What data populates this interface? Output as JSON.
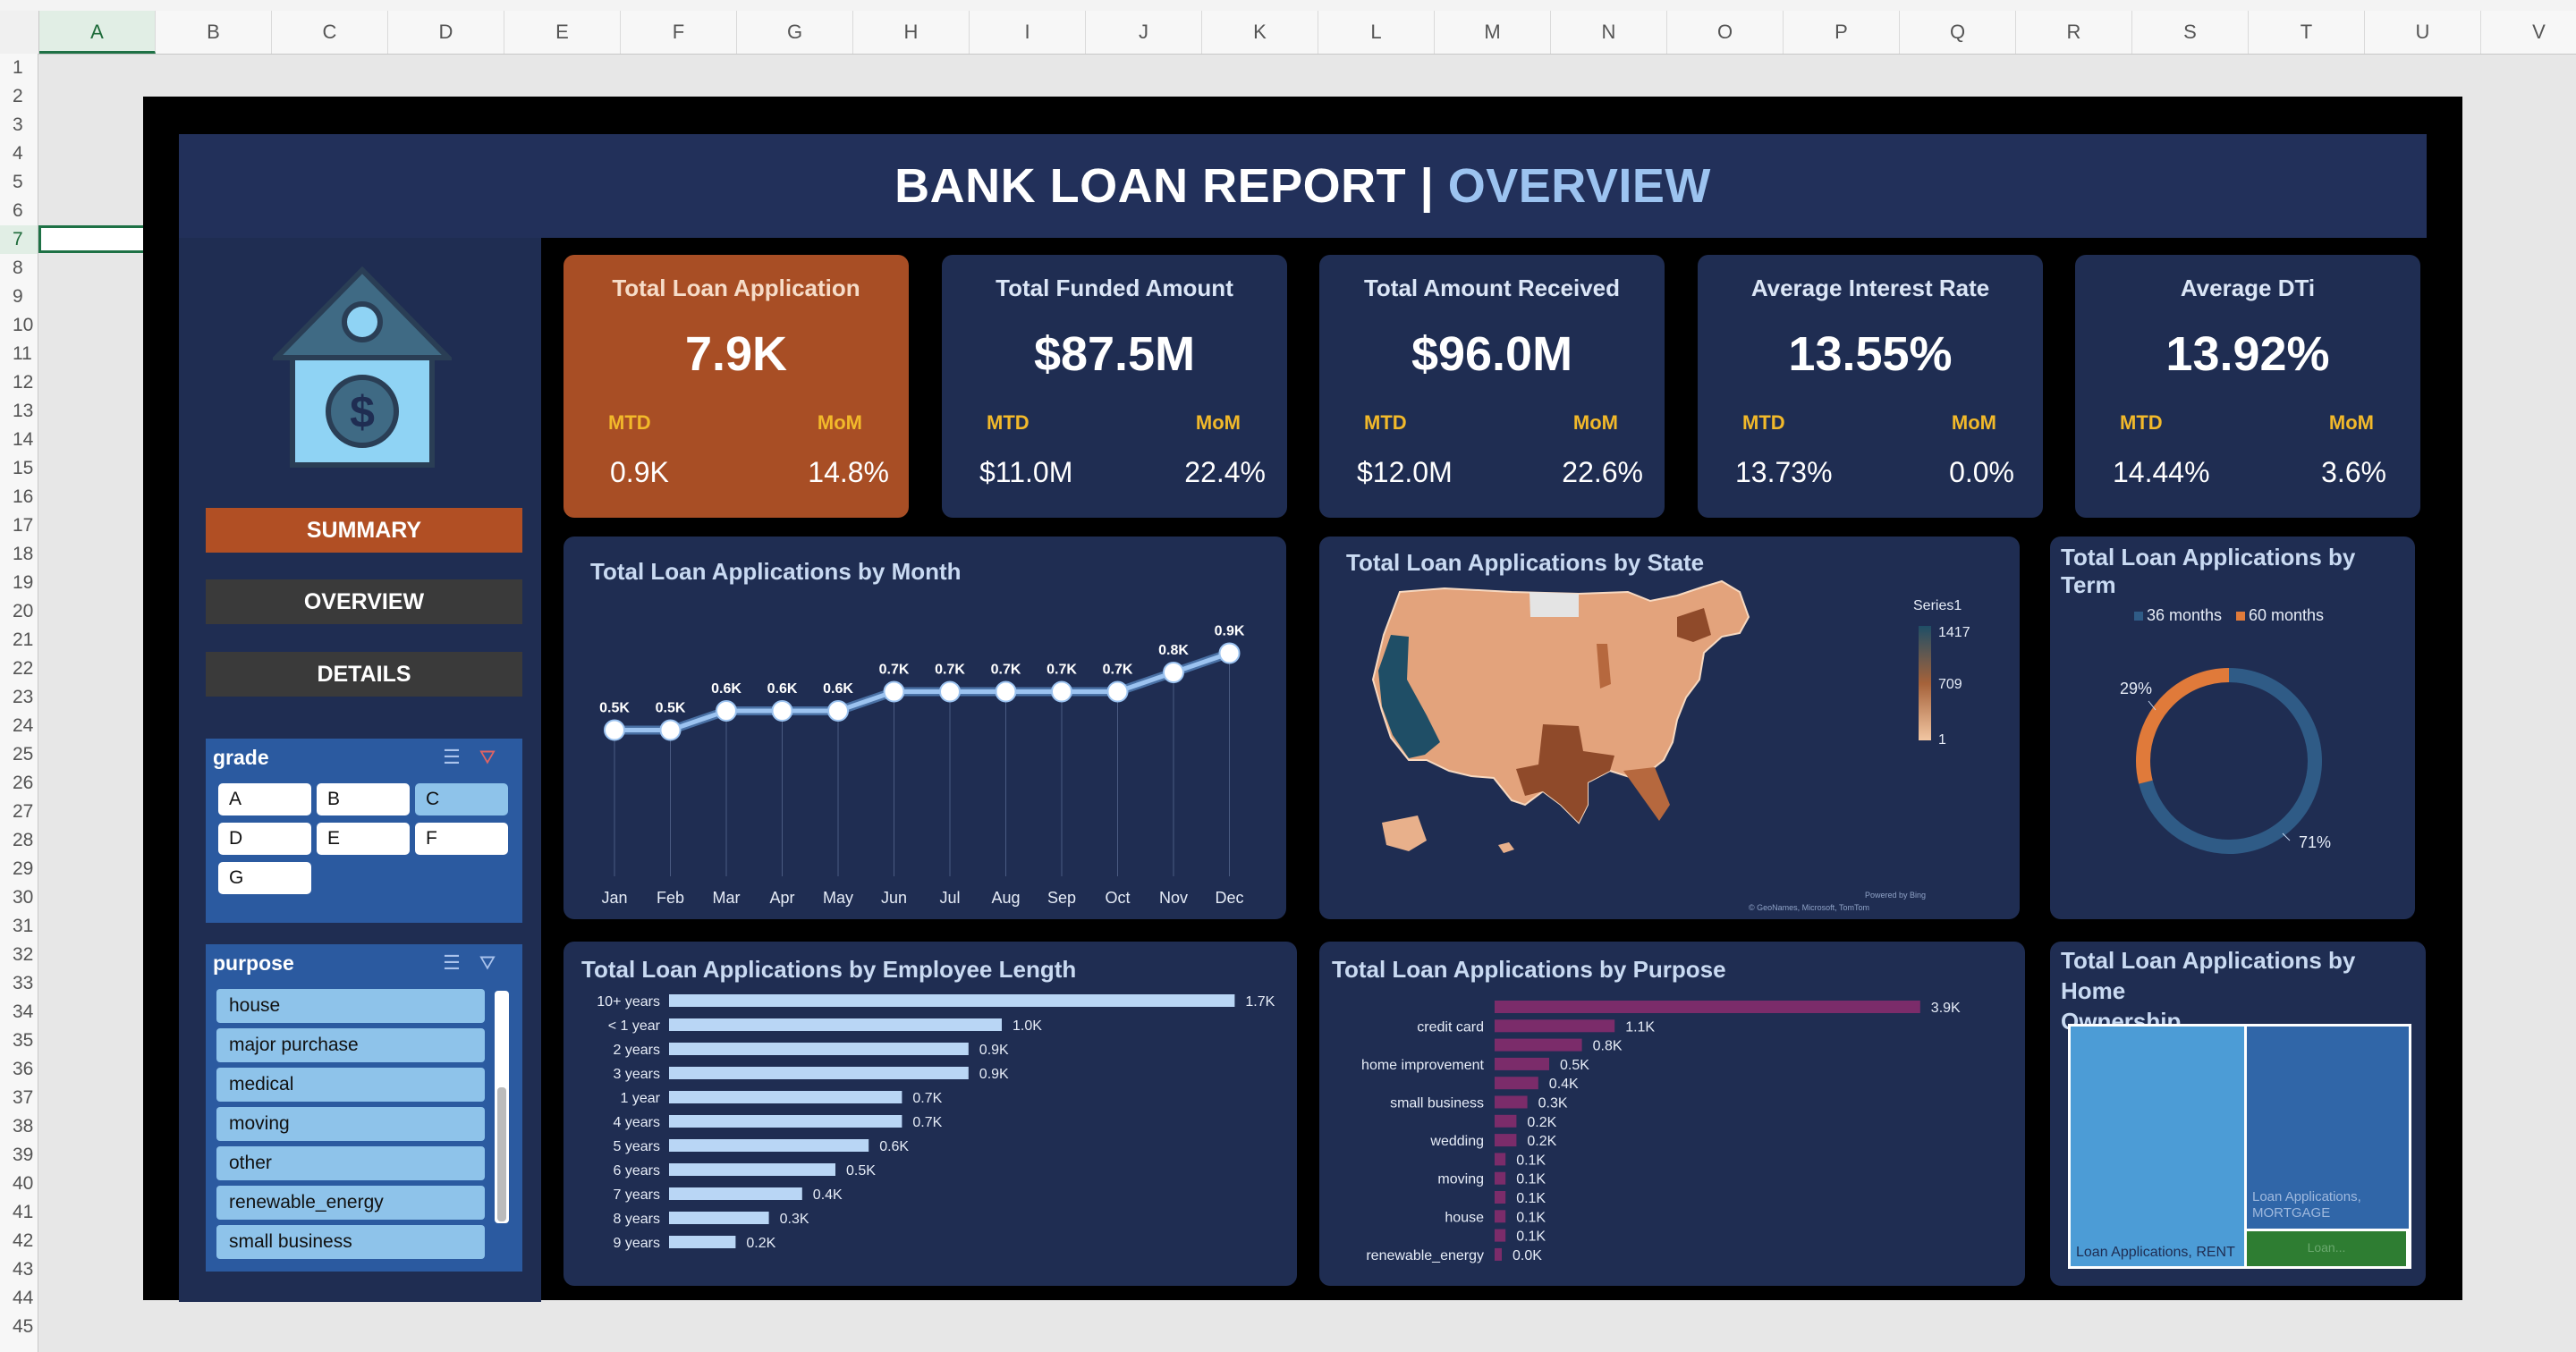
{
  "sheet": {
    "columns": [
      "A",
      "B",
      "C",
      "D",
      "E",
      "F",
      "G",
      "H",
      "I",
      "J",
      "K",
      "L",
      "M",
      "N",
      "O",
      "P",
      "Q",
      "R",
      "S",
      "T",
      "U",
      "V"
    ],
    "rows": [
      "1",
      "2",
      "3",
      "4",
      "5",
      "6",
      "7",
      "8",
      "9",
      "10",
      "11",
      "12",
      "13",
      "14",
      "15",
      "16",
      "17",
      "18",
      "19",
      "20",
      "21",
      "22",
      "23",
      "24",
      "25",
      "26",
      "27",
      "28",
      "29",
      "30",
      "31",
      "32",
      "33",
      "34",
      "35",
      "36",
      "37",
      "38",
      "39",
      "40",
      "41",
      "42",
      "43",
      "44",
      "45"
    ],
    "active_column": "A",
    "active_row": "7"
  },
  "header": {
    "title_main": "BANK LOAN REPORT |",
    "title_accent": "OVERVIEW"
  },
  "nav": {
    "summary": "SUMMARY",
    "overview": "OVERVIEW",
    "details": "DETAILS"
  },
  "colors": {
    "summary_bg": "#b14f24",
    "nav_bg": "#3a3a3a",
    "navy": "#1f2d52",
    "accent_orange": "#a84e25",
    "gold": "#f2b92a"
  },
  "slicers": {
    "grade": {
      "title": "grade",
      "items": [
        "A",
        "B",
        "C",
        "D",
        "E",
        "F",
        "G"
      ],
      "selected": [
        "C"
      ]
    },
    "purpose": {
      "title": "purpose",
      "items": [
        "house",
        "major purchase",
        "medical",
        "moving",
        "other",
        "renewable_energy",
        "small business"
      ]
    }
  },
  "kpis": [
    {
      "title": "Total Loan Application",
      "value": "7.9K",
      "mtd_label": "MTD",
      "mom_label": "MoM",
      "mtd": "0.9K",
      "mom": "14.8%"
    },
    {
      "title": "Total Funded Amount",
      "value": "$87.5M",
      "mtd_label": "MTD",
      "mom_label": "MoM",
      "mtd": "$11.0M",
      "mom": "22.4%"
    },
    {
      "title": "Total Amount Received",
      "value": "$96.0M",
      "mtd_label": "MTD",
      "mom_label": "MoM",
      "mtd": "$12.0M",
      "mom": "22.6%"
    },
    {
      "title": "Average Interest Rate",
      "value": "13.55%",
      "mtd_label": "MTD",
      "mom_label": "MoM",
      "mtd": "13.73%",
      "mom": "0.0%"
    },
    {
      "title": "Average DTi",
      "value": "13.92%",
      "mtd_label": "MTD",
      "mom_label": "MoM",
      "mtd": "14.44%",
      "mom": "3.6%"
    }
  ],
  "panels": {
    "month": "Total Loan Applications by Month",
    "state": "Total Loan Applications by State",
    "term": "Total Loan Applications by Term",
    "emp": "Total Loan Applications by Employee Length",
    "purpose": "Total Loan Applications by Purpose",
    "home_line1": "Total Loan Applications by Home",
    "home_line2": "Ownership"
  },
  "map": {
    "legend_title": "Series1",
    "legend_max": "1417",
    "legend_mid": "709",
    "legend_min": "1",
    "attribution_1": "Powered by Bing",
    "attribution_2": "© GeoNames, Microsoft, TomTom"
  },
  "chart_data": [
    {
      "type": "line",
      "title": "Total Loan Applications by Month",
      "categories": [
        "Jan",
        "Feb",
        "Mar",
        "Apr",
        "May",
        "Jun",
        "Jul",
        "Aug",
        "Sep",
        "Oct",
        "Nov",
        "Dec"
      ],
      "values": [
        0.5,
        0.5,
        0.6,
        0.6,
        0.6,
        0.7,
        0.7,
        0.7,
        0.7,
        0.7,
        0.8,
        0.9
      ],
      "data_labels": [
        "0.5K",
        "0.5K",
        "0.6K",
        "0.6K",
        "0.6K",
        "0.7K",
        "0.7K",
        "0.7K",
        "0.7K",
        "0.7K",
        "0.8K",
        "0.9K"
      ],
      "color": "#9cc3f0"
    },
    {
      "type": "pie",
      "title": "Total Loan Applications by Term",
      "categories": [
        "36 months",
        "60 months"
      ],
      "values": [
        71,
        29
      ],
      "data_labels": [
        "71%",
        "29%"
      ],
      "colors": [
        "#2f5b86",
        "#e07a3a"
      ],
      "legend": "top"
    },
    {
      "type": "bar",
      "title": "Total Loan Applications by Employee Length",
      "categories": [
        "10+ years",
        "< 1 year",
        "2 years",
        "3 years",
        "1 year",
        "4 years",
        "5 years",
        "6 years",
        "7 years",
        "8 years",
        "9 years"
      ],
      "values": [
        1.7,
        1.0,
        0.9,
        0.9,
        0.7,
        0.7,
        0.6,
        0.5,
        0.4,
        0.3,
        0.2
      ],
      "data_labels": [
        "1.7K",
        "1.0K",
        "0.9K",
        "0.9K",
        "0.7K",
        "0.7K",
        "0.6K",
        "0.5K",
        "0.4K",
        "0.3K",
        "0.2K"
      ],
      "color": "#b9d6f5"
    },
    {
      "type": "bar",
      "title": "Total Loan Applications by Purpose",
      "categories": [
        "",
        "credit card",
        "",
        "home improvement",
        "",
        "small business",
        "",
        "wedding",
        "",
        "moving",
        "",
        "house",
        "",
        "renewable_energy"
      ],
      "values": [
        3.9,
        1.1,
        0.8,
        0.5,
        0.4,
        0.3,
        0.2,
        0.2,
        0.1,
        0.1,
        0.1,
        0.1,
        0.1,
        0.0
      ],
      "data_labels": [
        "3.9K",
        "1.1K",
        "0.8K",
        "0.5K",
        "0.4K",
        "0.3K",
        "0.2K",
        "0.2K",
        "0.1K",
        "0.1K",
        "0.1K",
        "0.1K",
        "0.1K",
        "0.0K"
      ],
      "color": "#7b2c6a"
    },
    {
      "type": "treemap",
      "title": "Total Loan Applications by Home Ownership",
      "categories": [
        "Loan Applications, RENT",
        "Loan Applications, MORTGAGE",
        "Loan..."
      ],
      "colors": [
        "#4c9cd6",
        "#3066a8",
        "#2e7d32"
      ]
    }
  ]
}
